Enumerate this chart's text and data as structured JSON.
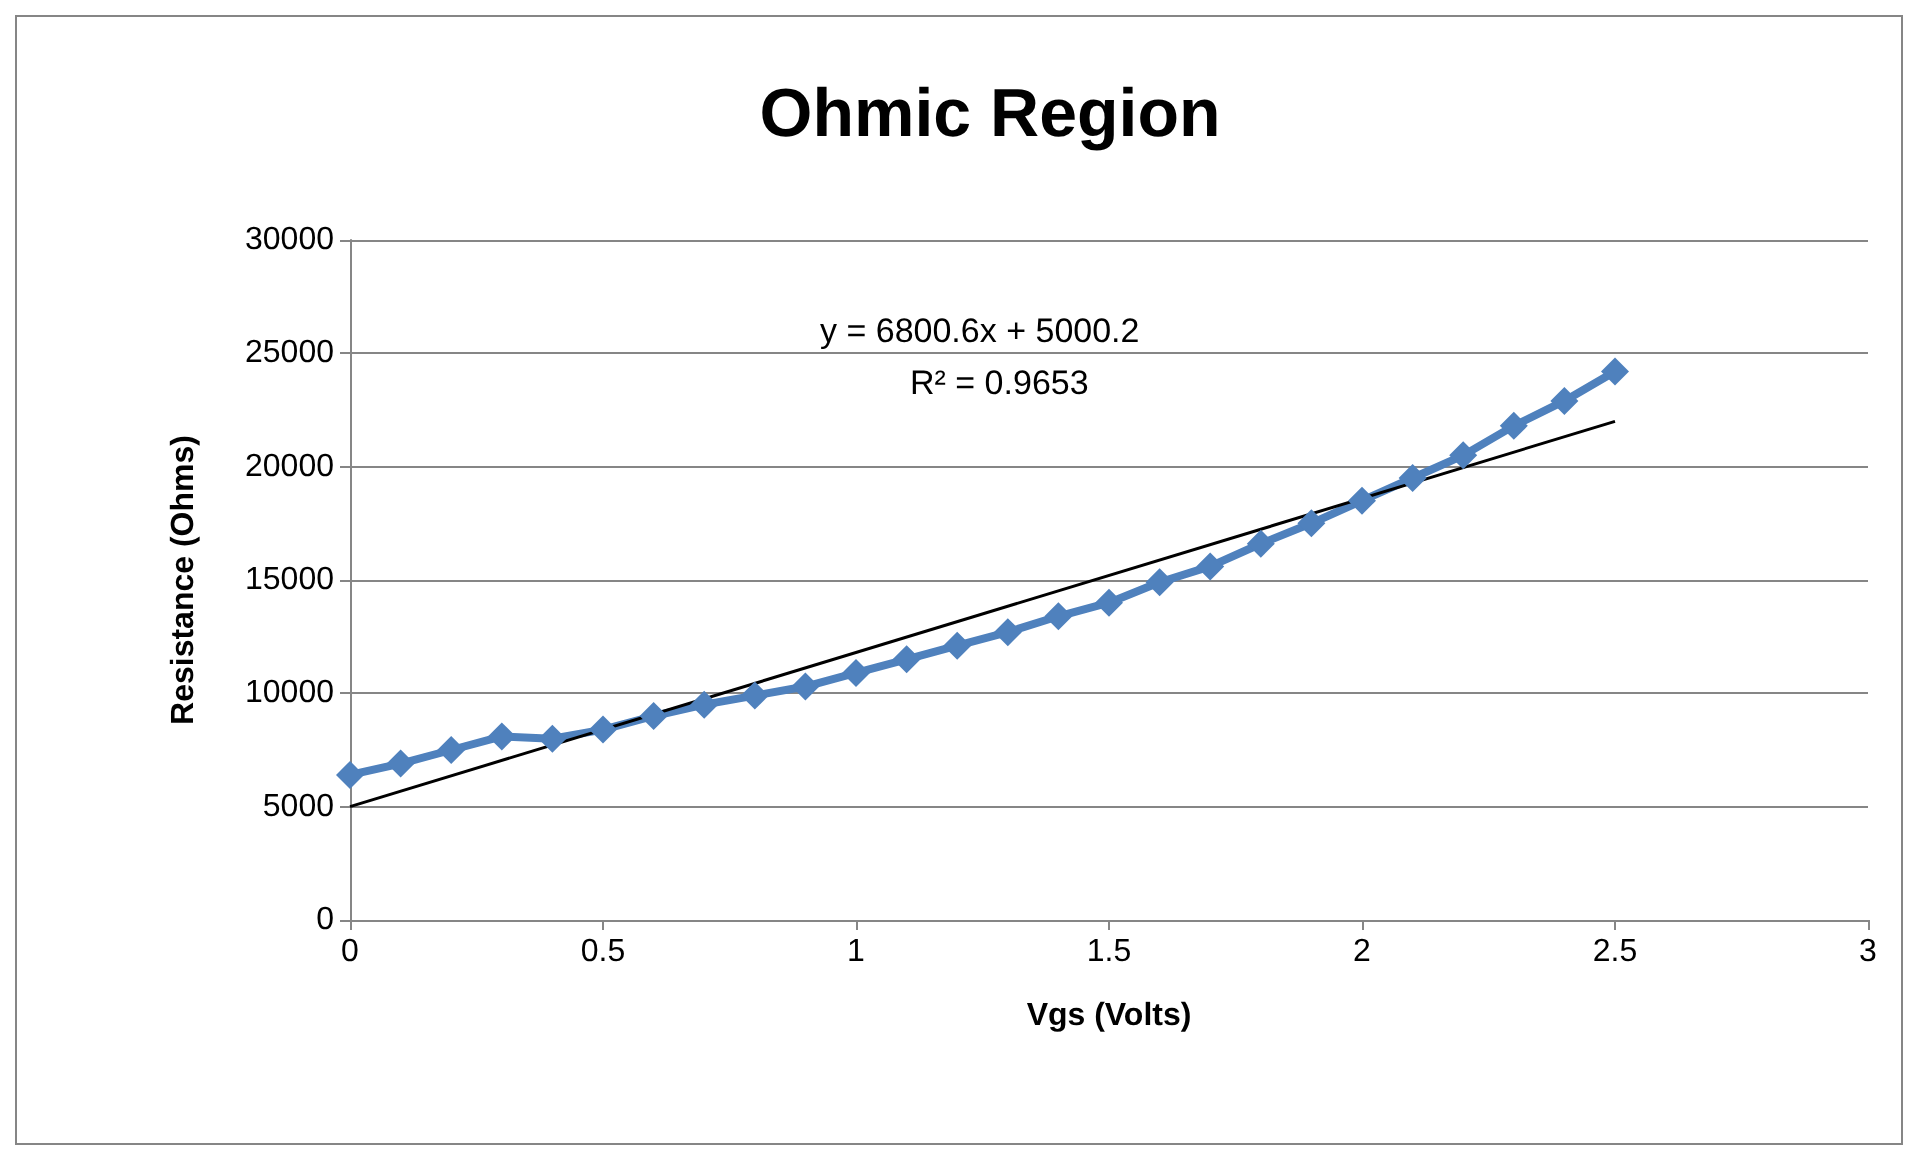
{
  "chart_data": {
    "type": "line",
    "title": "Ohmic Region",
    "xlabel": "Vgs (Volts)",
    "ylabel": "Resistance (Ohms)",
    "xlim": [
      0,
      3
    ],
    "xticks": [
      0,
      0.5,
      1,
      1.5,
      2,
      2.5,
      3
    ],
    "ylim": [
      0,
      30000
    ],
    "yticks": [
      0,
      5000,
      10000,
      15000,
      20000,
      25000,
      30000
    ],
    "grid": "y",
    "marker": "diamond",
    "line_style": "solid",
    "annotations": [
      "y = 6800.6x + 5000.2",
      "R² = 0.9653"
    ],
    "series": [
      {
        "color": "#4f81bd",
        "x": [
          0,
          0.1,
          0.2,
          0.3,
          0.4,
          0.5,
          0.6,
          0.7,
          0.8,
          0.9,
          1.0,
          1.1,
          1.2,
          1.3,
          1.4,
          1.5,
          1.6,
          1.7,
          1.8,
          1.9,
          2.0,
          2.1,
          2.2,
          2.3,
          2.4,
          2.5
        ],
        "values": [
          6400,
          6900,
          7500,
          8100,
          8000,
          8400,
          9000,
          9500,
          9900,
          10300,
          10900,
          11500,
          12100,
          12700,
          13400,
          14000,
          14900,
          15600,
          16600,
          17500,
          18500,
          19500,
          20500,
          21800,
          22900,
          24200
        ]
      },
      {
        "color": "#000000",
        "marker": "none",
        "x": [
          0,
          2.5
        ],
        "values": [
          5000,
          22000
        ]
      }
    ]
  }
}
